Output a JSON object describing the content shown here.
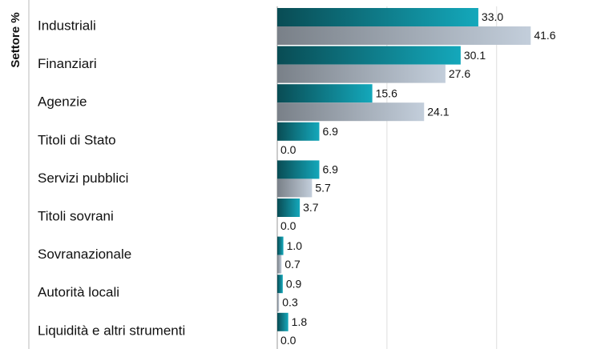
{
  "chart_data": {
    "type": "bar",
    "orientation": "horizontal",
    "y_label": "Settore %",
    "categories": [
      "Industriali",
      "Finanziari",
      "Agenzie",
      "Titoli di Stato",
      "Servizi pubblici",
      "Titoli sovrani",
      "Sovranazionale",
      "Autorità locali",
      "Liquidità e altri strumenti"
    ],
    "series": [
      {
        "color": "#14a8bb",
        "values": [
          33.0,
          30.1,
          15.6,
          6.9,
          6.9,
          3.7,
          1.0,
          0.9,
          1.8
        ],
        "value_labels": [
          "33.0",
          "30.1",
          "15.6",
          "6.9",
          "6.9",
          "3.7",
          "1.0",
          "0.9",
          "1.8"
        ]
      },
      {
        "color": "#c3cedb",
        "values": [
          41.6,
          27.6,
          24.1,
          0.0,
          5.7,
          0.0,
          0.7,
          0.3,
          0.0
        ],
        "value_labels": [
          "41.6",
          "27.6",
          "24.1",
          "0.0",
          "5.7",
          "0.0",
          "0.7",
          "0.3",
          "0.0"
        ]
      }
    ],
    "xlim": [
      0,
      53
    ],
    "xticks": [
      0,
      18,
      36
    ],
    "grid": true
  }
}
